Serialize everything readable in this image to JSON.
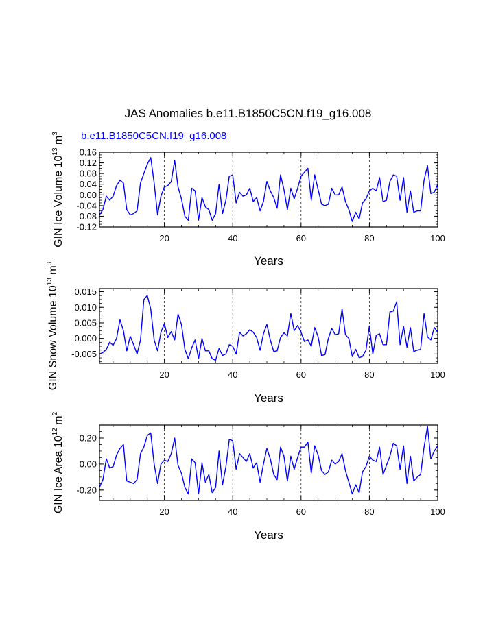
{
  "figure": {
    "title": "JAS Anomalies b.e11.B1850C5CN.f19_g16.008",
    "case_label": "b.e11.B1850C5CN.f19_g16.008",
    "line_color": "#0000ff",
    "case_label_color": "#0000ff"
  },
  "chart_data": [
    {
      "type": "line",
      "title": "",
      "xlabel": "Years",
      "ylabel": "GIN Ice Volume 10",
      "ylabel_exp": "13",
      "ylabel_unit": " m",
      "ylabel_unit_exp": "3",
      "xlim": [
        1,
        100
      ],
      "ylim": [
        -0.12,
        0.16
      ],
      "xticks": [
        20,
        40,
        60,
        80,
        100
      ],
      "xtick_labels": [
        "20",
        "40",
        "60",
        "80",
        "100"
      ],
      "yticks": [
        -0.12,
        -0.08,
        -0.04,
        0.0,
        0.04,
        0.08,
        0.12,
        0.16
      ],
      "ytick_labels": [
        "-0.12",
        "-0.08",
        "-0.04",
        "0.00",
        "0.04",
        "0.08",
        "0.12",
        "0.16"
      ],
      "grid_x": [
        20,
        40,
        60,
        80
      ],
      "series": [
        {
          "name": "b.e11.B1850C5CN.f19_g16.008",
          "x": [
            1,
            2,
            3,
            4,
            5,
            6,
            7,
            8,
            9,
            10,
            11,
            12,
            13,
            14,
            15,
            16,
            17,
            18,
            19,
            20,
            21,
            22,
            23,
            24,
            25,
            26,
            27,
            28,
            29,
            30,
            31,
            32,
            33,
            34,
            35,
            36,
            37,
            38,
            39,
            40,
            41,
            42,
            43,
            44,
            45,
            46,
            47,
            48,
            49,
            50,
            51,
            52,
            53,
            54,
            55,
            56,
            57,
            58,
            59,
            60,
            61,
            62,
            63,
            64,
            65,
            66,
            67,
            68,
            69,
            70,
            71,
            72,
            73,
            74,
            75,
            76,
            77,
            78,
            79,
            80,
            81,
            82,
            83,
            84,
            85,
            86,
            87,
            88,
            89,
            90,
            91,
            92,
            93,
            94,
            95,
            96,
            97,
            98,
            99,
            100
          ],
          "values": [
            -0.075,
            -0.055,
            -0.005,
            -0.02,
            -0.005,
            0.035,
            0.055,
            0.045,
            -0.055,
            -0.075,
            -0.07,
            -0.06,
            0.045,
            0.08,
            0.115,
            0.14,
            0.045,
            -0.075,
            -0.005,
            0.03,
            0.035,
            0.05,
            0.13,
            0.03,
            -0.015,
            -0.08,
            -0.095,
            0.025,
            0.015,
            -0.095,
            -0.01,
            -0.045,
            -0.055,
            -0.095,
            -0.07,
            0.04,
            -0.07,
            -0.02,
            0.07,
            0.075,
            -0.03,
            0.01,
            -0.005,
            0.0,
            0.025,
            -0.025,
            -0.01,
            -0.06,
            -0.025,
            0.05,
            0.015,
            -0.01,
            -0.05,
            0.075,
            0.02,
            -0.055,
            0.025,
            -0.015,
            0.025,
            0.07,
            0.085,
            0.1,
            -0.02,
            0.075,
            0.02,
            -0.035,
            -0.04,
            -0.035,
            0.025,
            0.0,
            0.0,
            0.03,
            -0.025,
            -0.055,
            -0.1,
            -0.065,
            -0.09,
            -0.03,
            -0.015,
            0.015,
            0.025,
            0.015,
            0.065,
            -0.025,
            -0.02,
            0.05,
            0.075,
            0.07,
            -0.02,
            0.065,
            -0.065,
            0.015,
            -0.065,
            -0.06,
            -0.06,
            0.055,
            0.11,
            0.005,
            0.01,
            0.04
          ]
        }
      ]
    },
    {
      "type": "line",
      "title": "",
      "xlabel": "Years",
      "ylabel": "GIN Snow Volume 10",
      "ylabel_exp": "13",
      "ylabel_unit": " m",
      "ylabel_unit_exp": "3",
      "xlim": [
        1,
        100
      ],
      "ylim": [
        -0.008,
        0.016
      ],
      "xticks": [
        20,
        40,
        60,
        80,
        100
      ],
      "xtick_labels": [
        "20",
        "40",
        "60",
        "80",
        "100"
      ],
      "yticks": [
        -0.005,
        0.0,
        0.005,
        0.01,
        0.015
      ],
      "ytick_labels": [
        "-0.005",
        "0.000",
        "0.005",
        "0.010",
        "0.015"
      ],
      "grid_x": [
        20,
        40,
        60,
        80
      ],
      "series": [
        {
          "name": "b.e11.B1850C5CN.f19_g16.008",
          "x": [
            1,
            2,
            3,
            4,
            5,
            6,
            7,
            8,
            9,
            10,
            11,
            12,
            13,
            14,
            15,
            16,
            17,
            18,
            19,
            20,
            21,
            22,
            23,
            24,
            25,
            26,
            27,
            28,
            29,
            30,
            31,
            32,
            33,
            34,
            35,
            36,
            37,
            38,
            39,
            40,
            41,
            42,
            43,
            44,
            45,
            46,
            47,
            48,
            49,
            50,
            51,
            52,
            53,
            54,
            55,
            56,
            57,
            58,
            59,
            60,
            61,
            62,
            63,
            64,
            65,
            66,
            67,
            68,
            69,
            70,
            71,
            72,
            73,
            74,
            75,
            76,
            77,
            78,
            79,
            80,
            81,
            82,
            83,
            84,
            85,
            86,
            87,
            88,
            89,
            90,
            91,
            92,
            93,
            94,
            95,
            96,
            97,
            98,
            99,
            100
          ],
          "values": [
            -0.005,
            -0.0045,
            -0.0035,
            -0.0012,
            -0.0022,
            0.0,
            0.006,
            0.0025,
            -0.004,
            0.0007,
            -0.002,
            -0.005,
            -0.0005,
            0.0125,
            0.0138,
            0.0095,
            -0.0005,
            -0.004,
            0.002,
            0.0048,
            0.0003,
            0.0022,
            -0.0005,
            0.0078,
            0.0045,
            -0.0035,
            -0.0065,
            -0.003,
            -0.0005,
            -0.0065,
            0.0,
            -0.004,
            -0.004,
            -0.0065,
            -0.007,
            -0.0032,
            -0.0055,
            -0.005,
            -0.002,
            -0.0025,
            -0.005,
            0.002,
            0.0008,
            0.0015,
            0.0028,
            0.002,
            0.0003,
            -0.0038,
            0.0015,
            0.0045,
            -0.0005,
            -0.0042,
            -0.004,
            0.0003,
            0.0018,
            0.0008,
            0.008,
            0.0025,
            0.0042,
            0.002,
            -0.001,
            -0.0005,
            -0.0025,
            0.0035,
            0.0005,
            -0.0055,
            -0.0052,
            0.0,
            0.0032,
            0.0012,
            0.0015,
            0.0095,
            0.0012,
            0.0,
            -0.0058,
            -0.0035,
            -0.0062,
            -0.0058,
            -0.0038,
            0.004,
            -0.005,
            0.001,
            0.0015,
            -0.002,
            -0.002,
            0.0085,
            0.0088,
            0.0118,
            -0.002,
            0.0038,
            -0.0028,
            0.0035,
            -0.0042,
            -0.0038,
            -0.0035,
            0.008,
            0.0005,
            -0.0005,
            0.0035,
            0.002
          ]
        }
      ]
    },
    {
      "type": "line",
      "title": "",
      "xlabel": "Years",
      "ylabel": "GIN Ice Area 10",
      "ylabel_exp": "12",
      "ylabel_unit": " m",
      "ylabel_unit_exp": "2",
      "xlim": [
        1,
        100
      ],
      "ylim": [
        -0.28,
        0.3
      ],
      "xticks": [
        20,
        40,
        60,
        80,
        100
      ],
      "xtick_labels": [
        "20",
        "40",
        "60",
        "80",
        "100"
      ],
      "yticks": [
        -0.2,
        0.0,
        0.2
      ],
      "ytick_labels": [
        "-0.20",
        "0.00",
        "0.20"
      ],
      "grid_x": [
        20,
        40,
        60,
        80
      ],
      "series": [
        {
          "name": "b.e11.B1850C5CN.f19_g16.008",
          "x": [
            1,
            2,
            3,
            4,
            5,
            6,
            7,
            8,
            9,
            10,
            11,
            12,
            13,
            14,
            15,
            16,
            17,
            18,
            19,
            20,
            21,
            22,
            23,
            24,
            25,
            26,
            27,
            28,
            29,
            30,
            31,
            32,
            33,
            34,
            35,
            36,
            37,
            38,
            39,
            40,
            41,
            42,
            43,
            44,
            45,
            46,
            47,
            48,
            49,
            50,
            51,
            52,
            53,
            54,
            55,
            56,
            57,
            58,
            59,
            60,
            61,
            62,
            63,
            64,
            65,
            66,
            67,
            68,
            69,
            70,
            71,
            72,
            73,
            74,
            75,
            76,
            77,
            78,
            79,
            80,
            81,
            82,
            83,
            84,
            85,
            86,
            87,
            88,
            89,
            90,
            91,
            92,
            93,
            94,
            95,
            96,
            97,
            98,
            99,
            100
          ],
          "values": [
            -0.18,
            -0.12,
            0.04,
            -0.03,
            -0.02,
            0.07,
            0.12,
            0.15,
            -0.13,
            -0.14,
            -0.15,
            -0.12,
            0.08,
            0.13,
            0.22,
            0.24,
            0.0,
            -0.15,
            0.0,
            0.03,
            0.02,
            0.08,
            0.2,
            -0.01,
            -0.07,
            -0.18,
            -0.23,
            0.04,
            0.01,
            -0.23,
            0.01,
            -0.14,
            -0.08,
            -0.22,
            -0.18,
            0.1,
            -0.16,
            -0.02,
            0.19,
            0.18,
            -0.04,
            0.08,
            0.05,
            0.02,
            0.08,
            -0.03,
            0.01,
            -0.14,
            0.0,
            0.12,
            0.04,
            -0.08,
            -0.12,
            0.13,
            0.06,
            -0.13,
            0.06,
            -0.04,
            0.05,
            0.13,
            0.13,
            0.17,
            -0.07,
            0.14,
            0.07,
            -0.05,
            -0.08,
            -0.06,
            0.03,
            0.0,
            0.02,
            0.08,
            -0.05,
            -0.14,
            -0.23,
            -0.16,
            -0.22,
            -0.06,
            -0.02,
            0.06,
            0.03,
            0.02,
            0.13,
            -0.08,
            -0.01,
            0.06,
            0.16,
            0.14,
            -0.04,
            0.14,
            -0.15,
            0.06,
            -0.13,
            -0.1,
            -0.08,
            0.13,
            0.29,
            0.04,
            0.1,
            0.14
          ]
        }
      ]
    }
  ]
}
